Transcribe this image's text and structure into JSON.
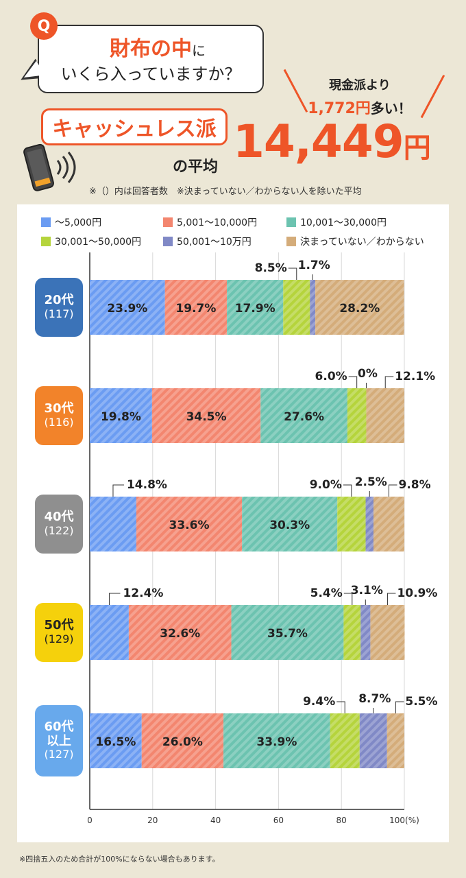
{
  "header": {
    "q_badge": "Q",
    "question_strong": "財布の中",
    "question_tail": "に",
    "question_line2": "いくら入っていますか？",
    "cashless_label": "キャッシュレス派",
    "average_label": "の平均",
    "big_number": "14,449",
    "big_unit": "円",
    "compare_line1": "現金派より",
    "compare_amount": "1,772円",
    "compare_tail": "多い！",
    "note": "※（）内は回答者数　※決まっていない／わからない人を除いた平均"
  },
  "colors": {
    "accent": "#ee5528",
    "s1": "#6b9cf2",
    "s2": "#f3866f",
    "s3": "#6cc3b0",
    "s4": "#b5d43c",
    "s5": "#8089c6",
    "s6": "#d4ac7a"
  },
  "chart_data": {
    "type": "bar",
    "orientation": "horizontal",
    "stacked": true,
    "series_names": [
      "～5,000円",
      "5,001～10,000円",
      "10,001～30,000円",
      "30,001～50,000円",
      "50,001～10万円",
      "決まっていない／わからない"
    ],
    "groups": [
      {
        "label": "20代",
        "n": "(117)",
        "color": "#3b73b8",
        "values": [
          23.9,
          19.7,
          17.9,
          8.5,
          1.7,
          28.2
        ]
      },
      {
        "label": "30代",
        "n": "(116)",
        "color": "#f2832a",
        "values": [
          19.8,
          34.5,
          27.6,
          6.0,
          0,
          12.1
        ]
      },
      {
        "label": "40代",
        "n": "(122)",
        "color": "#8f8f8f",
        "values": [
          14.8,
          33.6,
          30.3,
          9.0,
          2.5,
          9.8
        ]
      },
      {
        "label": "50代",
        "n": "(129)",
        "color": "#f5d10c",
        "label_color": "#222",
        "values": [
          12.4,
          32.6,
          35.7,
          5.4,
          3.1,
          10.9
        ]
      },
      {
        "label": "60代\n以上",
        "n": "(127)",
        "color": "#68a9ec",
        "values": [
          16.5,
          26.0,
          33.9,
          9.4,
          8.7,
          5.5
        ]
      }
    ],
    "value_labels": [
      [
        "23.9%",
        "19.7%",
        "17.9%",
        "8.5%",
        "1.7%",
        "28.2%"
      ],
      [
        "19.8%",
        "34.5%",
        "27.6%",
        "6.0%",
        "0%",
        "12.1%"
      ],
      [
        "14.8%",
        "33.6%",
        "30.3%",
        "9.0%",
        "2.5%",
        "9.8%"
      ],
      [
        "12.4%",
        "32.6%",
        "35.7%",
        "5.4%",
        "3.1%",
        "10.9%"
      ],
      [
        "16.5%",
        "26.0%",
        "33.9%",
        "9.4%",
        "8.7%",
        "5.5%"
      ]
    ],
    "x_ticks": [
      "0",
      "20",
      "40",
      "60",
      "80",
      "100(%)"
    ],
    "xlim": [
      0,
      100
    ],
    "grid": true
  },
  "footnote": "※四捨五入のため合計が100%にならない場合もあります。"
}
